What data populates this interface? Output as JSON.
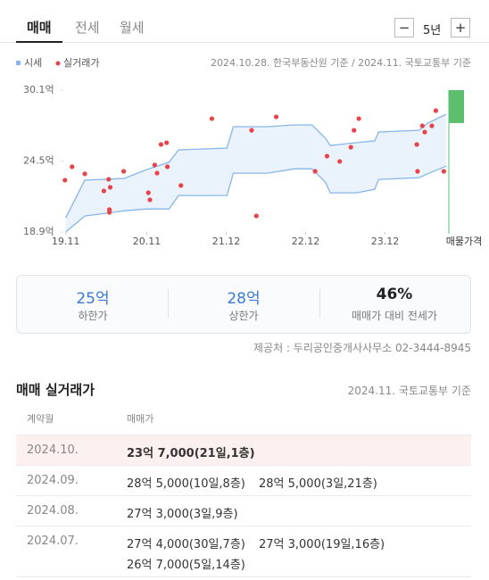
{
  "tabs": [
    "매매",
    "전세",
    "월세"
  ],
  "period": {
    "minus": "−",
    "value": "5년",
    "plus": "+"
  },
  "chart_data": {
    "type": "band-scatter",
    "source_note": "2024.10.28. 한국부동산원 기준 / 2024.11. 국토교통부 기준",
    "xlim": [
      2019.8,
      2024.62
    ],
    "xticks": [
      {
        "value": 2019.83,
        "label": "19.11"
      },
      {
        "value": 2020.85,
        "label": "20.11"
      },
      {
        "value": 2021.85,
        "label": "21.12"
      },
      {
        "value": 2022.85,
        "label": "22.12"
      },
      {
        "value": 2023.85,
        "label": "23.12"
      }
    ],
    "ylim": [
      18.9,
      30.1
    ],
    "yticks": [
      {
        "value": 30.1,
        "label": "30.1억"
      },
      {
        "value": 24.5,
        "label": "24.5억"
      },
      {
        "value": 18.9,
        "label": "18.9억"
      }
    ],
    "series": [
      {
        "name": "시세",
        "color": "#86b6e8",
        "fill": "#eaf3fc",
        "x": [
          2019.83,
          2020.07,
          2020.57,
          2020.85,
          2021.13,
          2021.25,
          2021.86,
          2021.94,
          2022.37,
          2022.71,
          2022.93,
          2023.1,
          2023.16,
          2023.49,
          2023.72,
          2023.77,
          2024.28,
          2024.39,
          2024.62
        ],
        "upper": [
          20.02,
          22.99,
          23.13,
          23.83,
          24.4,
          25.38,
          25.52,
          27.21,
          27.21,
          27.35,
          27.35,
          26.3,
          25.73,
          25.95,
          26.09,
          26.79,
          26.93,
          27.5,
          28.2
        ],
        "lower": [
          18.9,
          20.16,
          20.58,
          20.72,
          20.72,
          21.78,
          21.78,
          23.54,
          23.54,
          23.89,
          23.89,
          22.83,
          21.99,
          21.99,
          22.27,
          23.05,
          23.19,
          23.5,
          24.1
        ]
      },
      {
        "name": "실거래가",
        "color": "#e8424a",
        "x": [
          2019.82,
          2019.91,
          2020.07,
          2020.31,
          2020.37,
          2020.39,
          2020.38,
          2020.38,
          2020.56,
          2020.87,
          2020.89,
          2020.95,
          2020.98,
          2021.03,
          2021.1,
          2021.11,
          2021.28,
          2021.67,
          2022.17,
          2022.23,
          2022.48,
          2022.97,
          2023.12,
          2023.28,
          2023.42,
          2023.46,
          2023.52,
          2024.25,
          2024.26,
          2024.32,
          2024.35,
          2024.44,
          2024.49,
          2024.59
        ],
        "values": [
          22.99,
          24.05,
          23.49,
          22.14,
          23.06,
          22.43,
          20.67,
          20.45,
          23.69,
          22.0,
          21.44,
          24.19,
          23.55,
          25.81,
          25.95,
          24.05,
          22.57,
          27.85,
          26.93,
          20.17,
          27.99,
          23.69,
          24.89,
          24.47,
          25.59,
          26.93,
          27.85,
          25.81,
          23.69,
          27.28,
          26.79,
          27.28,
          28.48,
          23.69
        ]
      }
    ],
    "listing": {
      "label": "매물가격",
      "color": "#5cbf6e",
      "range": [
        27.5,
        30.1
      ]
    }
  },
  "summary": [
    {
      "value": "25억",
      "label": "하한가"
    },
    {
      "value": "28억",
      "label": "상한가"
    },
    {
      "value": "46%",
      "label": "매매가 대비 전세가"
    }
  ],
  "provider": "제공처 : 두리공인중개사사무소 02-3444-8945",
  "deals": {
    "title": "매매 실거래가",
    "note": "2024.11. 국토교통부 기준",
    "header": [
      "계약월",
      "매매가"
    ],
    "rows": [
      {
        "month": "2024.10.",
        "prices": [
          "23억 7,000(21일,1층)"
        ]
      },
      {
        "month": "2024.09.",
        "prices": [
          "28억 5,000(10일,8층)",
          "28억 5,000(3일,21층)"
        ]
      },
      {
        "month": "2024.08.",
        "prices": [
          "27억 3,000(3일,9층)"
        ]
      },
      {
        "month": "2024.07.",
        "prices": [
          "27억 4,000(30일,7층)",
          "27억 3,000(19일,16층)",
          "26억 7,000(5일,14층)"
        ]
      }
    ]
  }
}
